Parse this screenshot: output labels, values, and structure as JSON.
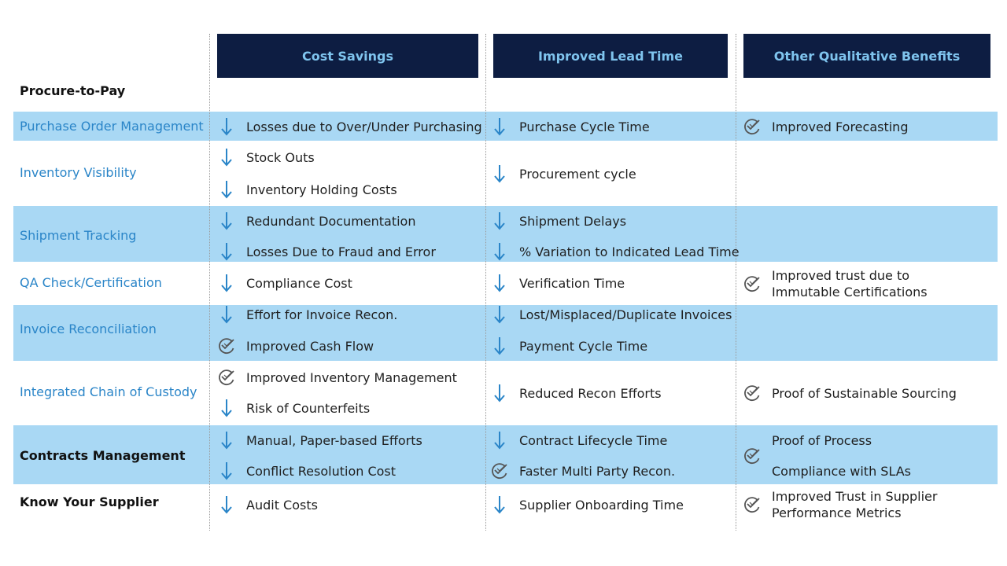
{
  "header": {
    "section_label": "Procure-to-Pay",
    "columns": [
      "Cost Savings",
      "Improved Lead Time",
      "Other Qualitative Benefits"
    ]
  },
  "rows": [
    {
      "label": "Purchase Order Management",
      "cost": [
        {
          "icon": "down-arrow-icon",
          "text": "Losses due to Over/Under Purchasing"
        }
      ],
      "lead": [
        {
          "icon": "down-arrow-icon",
          "text": "Purchase Cycle Time"
        }
      ],
      "other": [
        {
          "icon": "check-badge-icon",
          "text": "Improved Forecasting"
        }
      ]
    },
    {
      "label": "Inventory Visibility",
      "cost": [
        {
          "icon": "down-arrow-icon",
          "text": "Stock Outs"
        },
        {
          "icon": "down-arrow-icon",
          "text": "Inventory Holding Costs"
        }
      ],
      "lead": [
        {
          "icon": "down-arrow-icon",
          "text": "Procurement cycle"
        }
      ],
      "other": []
    },
    {
      "label": "Shipment Tracking",
      "cost": [
        {
          "icon": "down-arrow-icon",
          "text": "Redundant Documentation"
        },
        {
          "icon": "down-arrow-icon",
          "text": "Losses Due to Fraud and Error"
        }
      ],
      "lead": [
        {
          "icon": "down-arrow-icon",
          "text": "Shipment Delays"
        },
        {
          "icon": "down-arrow-icon",
          "text": "% Variation to Indicated Lead Time"
        }
      ],
      "other": []
    },
    {
      "label": "QA Check/Certification",
      "cost": [
        {
          "icon": "down-arrow-icon",
          "text": "Compliance Cost"
        }
      ],
      "lead": [
        {
          "icon": "down-arrow-icon",
          "text": "Verification Time"
        }
      ],
      "other": [
        {
          "icon": "check-badge-icon",
          "text": "Improved trust due to",
          "text2": "Immutable Certifications"
        }
      ]
    },
    {
      "label": "Invoice Reconciliation",
      "cost": [
        {
          "icon": "down-arrow-icon",
          "text": "Effort for Invoice Recon."
        },
        {
          "icon": "check-badge-icon",
          "text": "Improved Cash Flow"
        }
      ],
      "lead": [
        {
          "icon": "down-arrow-icon",
          "text": "Lost/Misplaced/Duplicate Invoices"
        },
        {
          "icon": "down-arrow-icon",
          "text": "Payment Cycle Time"
        }
      ],
      "other": []
    },
    {
      "label": "Integrated Chain of Custody",
      "cost": [
        {
          "icon": "check-badge-icon",
          "text": "Improved Inventory Management"
        },
        {
          "icon": "down-arrow-icon",
          "text": "Risk of Counterfeits"
        }
      ],
      "lead": [
        {
          "icon": "down-arrow-icon",
          "text": "Reduced Recon Efforts"
        }
      ],
      "other": [
        {
          "icon": "check-badge-icon",
          "text": "Proof of Sustainable Sourcing"
        }
      ]
    },
    {
      "label": "Contracts Management",
      "cost": [
        {
          "icon": "down-arrow-icon",
          "text": "Manual, Paper-based Efforts"
        },
        {
          "icon": "down-arrow-icon",
          "text": "Conflict Resolution Cost"
        }
      ],
      "lead": [
        {
          "icon": "down-arrow-icon",
          "text": "Contract Lifecycle Time"
        },
        {
          "icon": "check-badge-icon",
          "text": "Faster Multi Party Recon."
        }
      ],
      "other": [
        {
          "icon": "check-badge-icon",
          "text": "Proof of Process",
          "text2": "Compliance with SLAs"
        }
      ]
    },
    {
      "label": "Know Your Supplier",
      "cost": [
        {
          "icon": "down-arrow-icon",
          "text": "Audit Costs"
        }
      ],
      "lead": [
        {
          "icon": "down-arrow-icon",
          "text": "Supplier Onboarding Time"
        }
      ],
      "other": [
        {
          "icon": "check-badge-icon",
          "text": "Improved Trust in Supplier",
          "text2": "Performance Metrics"
        }
      ]
    }
  ],
  "colors": {
    "header_bg": "#0d1d42",
    "header_text": "#7fc4ee",
    "band": "#a9d8f4",
    "label_blue": "#2a85c8",
    "arrow": "#2a85c8"
  }
}
